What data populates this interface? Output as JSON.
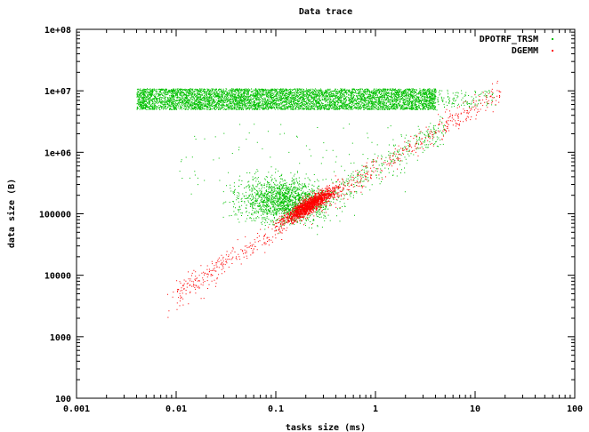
{
  "chart_data": {
    "type": "scatter",
    "title": "Data trace",
    "xlabel": "tasks size (ms)",
    "ylabel": "data size (B)",
    "x_scale": "log",
    "y_scale": "log",
    "xlim": [
      0.001,
      100
    ],
    "ylim": [
      100,
      100000000
    ],
    "x_ticks": [
      0.001,
      0.01,
      0.1,
      1,
      10,
      100
    ],
    "x_tick_labels": [
      "0.001",
      "0.01",
      "0.1",
      "1",
      "10",
      "100"
    ],
    "y_ticks": [
      100,
      1000,
      10000,
      100000,
      1000000,
      10000000,
      100000000
    ],
    "y_tick_labels": [
      "100",
      "1000",
      "10000",
      "100000",
      "1e+06",
      "1e+07",
      "1e+08"
    ],
    "grid": false,
    "legend_position": "top-right",
    "series": [
      {
        "name": "DPOTRF_TRSM",
        "color": "#00c000",
        "clusters": [
          {
            "x_range": [
              0.004,
              4
            ],
            "y_range": [
              5000000,
              11000000
            ],
            "density": "very high"
          },
          {
            "x_range": [
              4,
              15
            ],
            "y_range": [
              5500000,
              10000000
            ],
            "density": "low"
          },
          {
            "x_range": [
              0.015,
              0.6
            ],
            "y_range": [
              30000,
              600000
            ],
            "density": "medium"
          },
          {
            "x_range": [
              0.2,
              5
            ],
            "y_range": [
              200000,
              3000000
            ],
            "density": "low"
          }
        ]
      },
      {
        "name": "DGEMM",
        "color": "#ff0000",
        "relation": "y approx 600000 * x (B per ms)",
        "x_range": [
          0.008,
          20
        ],
        "y_range": [
          2500,
          12000000
        ],
        "core": {
          "x_range": [
            0.08,
            0.6
          ],
          "y_range": [
            60000,
            400000
          ]
        }
      }
    ]
  }
}
